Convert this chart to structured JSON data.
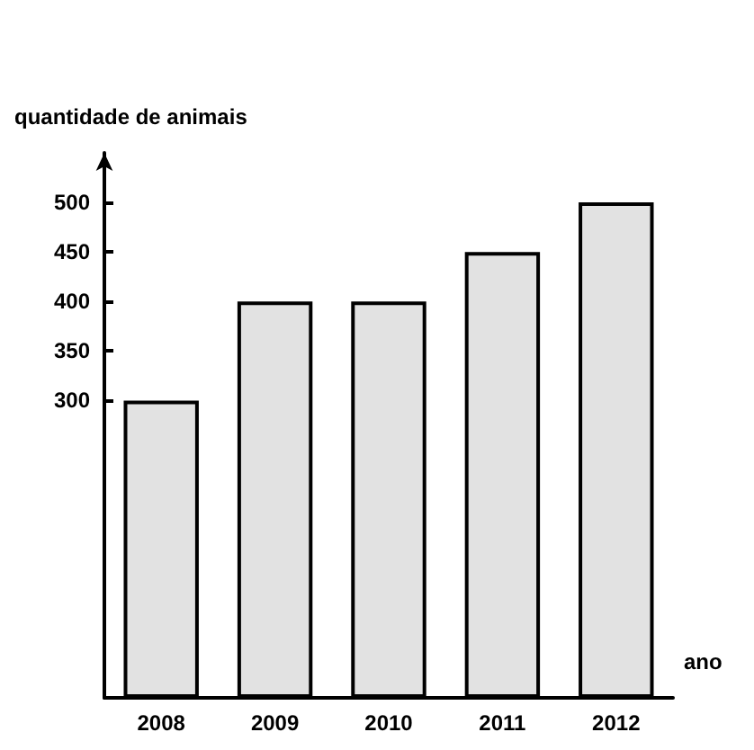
{
  "chart_data": {
    "type": "bar",
    "xlabel": "ano",
    "ylabel": "quantidade de animais",
    "categories": [
      "2008",
      "2009",
      "2010",
      "2011",
      "2012"
    ],
    "values": [
      300,
      400,
      400,
      450,
      500
    ],
    "color": "#e2e2e2",
    "ylim": [
      0,
      550
    ],
    "yticks": [
      300,
      350,
      400,
      450,
      500
    ],
    "grid": false
  }
}
